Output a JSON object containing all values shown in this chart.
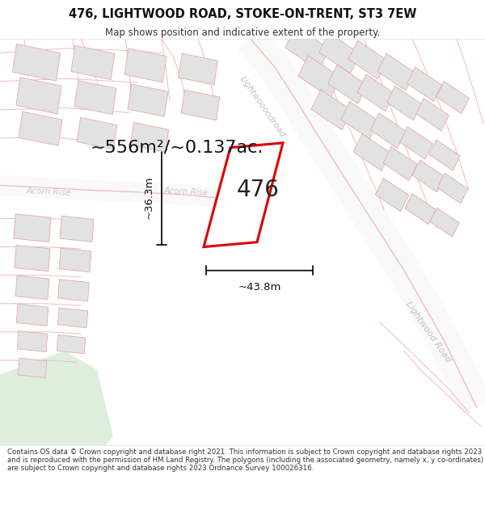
{
  "title": "476, LIGHTWOOD ROAD, STOKE-ON-TRENT, ST3 7EW",
  "subtitle": "Map shows position and indicative extent of the property.",
  "footer": "Contains OS data © Crown copyright and database right 2021. This information is subject to Crown copyright and database rights 2023 and is reproduced with the permission of HM Land Registry. The polygons (including the associated geometry, namely x, y co-ordinates) are subject to Crown copyright and database rights 2023 Ordnance Survey 100026316.",
  "area_text": "~556m²/~0.137ac.",
  "label_476": "476",
  "dim_width": "~43.8m",
  "dim_height": "~36.3m",
  "map_bg": "#f7f7f7",
  "plot_outline_color": "#dd0000",
  "building_fill": "#e2e2e2",
  "building_edge": "#e8aaaa",
  "road_line_color": "#f0bbbb",
  "road_fill_color": "#f9f9f9",
  "green_area_color": "#ddeedd",
  "title_fontsize": 10.5,
  "subtitle_fontsize": 8.5,
  "footer_fontsize": 6.2,
  "area_fontsize": 16,
  "label_fontsize": 20,
  "dim_fontsize": 9.5,
  "road_label_color": "#cccccc",
  "road_label_size": 8
}
